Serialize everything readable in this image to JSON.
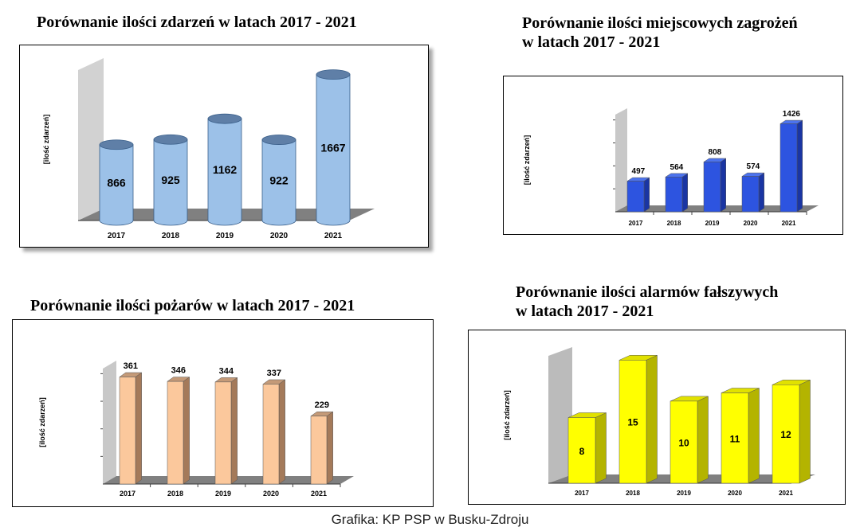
{
  "credit": "Grafika: KP PSP w Busku-Zdroju",
  "chart_data": [
    {
      "type": "bar",
      "title_lines": [
        "Porównanie ilości zdarzeń w latach 2017 - 2021"
      ],
      "ylabel": "[ilość zdarzeń]",
      "categories": [
        "2017",
        "2018",
        "2019",
        "2020",
        "2021"
      ],
      "values": [
        866,
        925,
        1162,
        922,
        1667
      ],
      "ylim": [
        0,
        1800
      ],
      "style": "cylinder",
      "value_label_position": "inside",
      "colors": {
        "front": "#9cc1e8",
        "top": "#5f7fa7",
        "back_wall": "#d2d2d2",
        "floor": "#808080"
      }
    },
    {
      "type": "bar",
      "title_lines": [
        "Porównanie ilości miejscowych zagrożeń",
        "w latach 2017 - 2021"
      ],
      "ylabel": "[ilość zdarzeń]",
      "categories": [
        "2017",
        "2018",
        "2019",
        "2020",
        "2021"
      ],
      "values": [
        497,
        564,
        808,
        574,
        1426
      ],
      "ylim": [
        0,
        1600
      ],
      "style": "box",
      "value_label_position": "above",
      "colors": {
        "front": "#2d54e0",
        "side": "#1a35a3",
        "top": "#4c73ee",
        "back_wall": "#c8c8c8",
        "floor": "#808080"
      }
    },
    {
      "type": "bar",
      "title_lines": [
        "Porównanie ilości pożarów w latach 2017 - 2021"
      ],
      "ylabel": "[ilość zdarzeń]",
      "categories": [
        "2017",
        "2018",
        "2019",
        "2020",
        "2021"
      ],
      "values": [
        361,
        346,
        344,
        337,
        229
      ],
      "ylim": [
        0,
        400
      ],
      "style": "box",
      "value_label_position": "above",
      "colors": {
        "front": "#fbc89c",
        "side": "#a47a5a",
        "top": "#c49a78",
        "back_wall": "#c8c8c8",
        "floor": "#808080"
      }
    },
    {
      "type": "bar",
      "title_lines": [
        "Porównanie ilości alarmów fałszywych",
        "w latach 2017 - 2021"
      ],
      "ylabel": "[ilość zdarzeń]",
      "categories": [
        "2017",
        "2018",
        "2019",
        "2020",
        "2021"
      ],
      "values": [
        8,
        15,
        10,
        11,
        12
      ],
      "ylim": [
        0,
        16
      ],
      "style": "box",
      "value_label_position": "inside",
      "colors": {
        "front": "#ffff00",
        "side": "#b4b400",
        "top": "#e1e100",
        "back_wall": "#bbbbbb",
        "floor": "#808080"
      }
    }
  ]
}
